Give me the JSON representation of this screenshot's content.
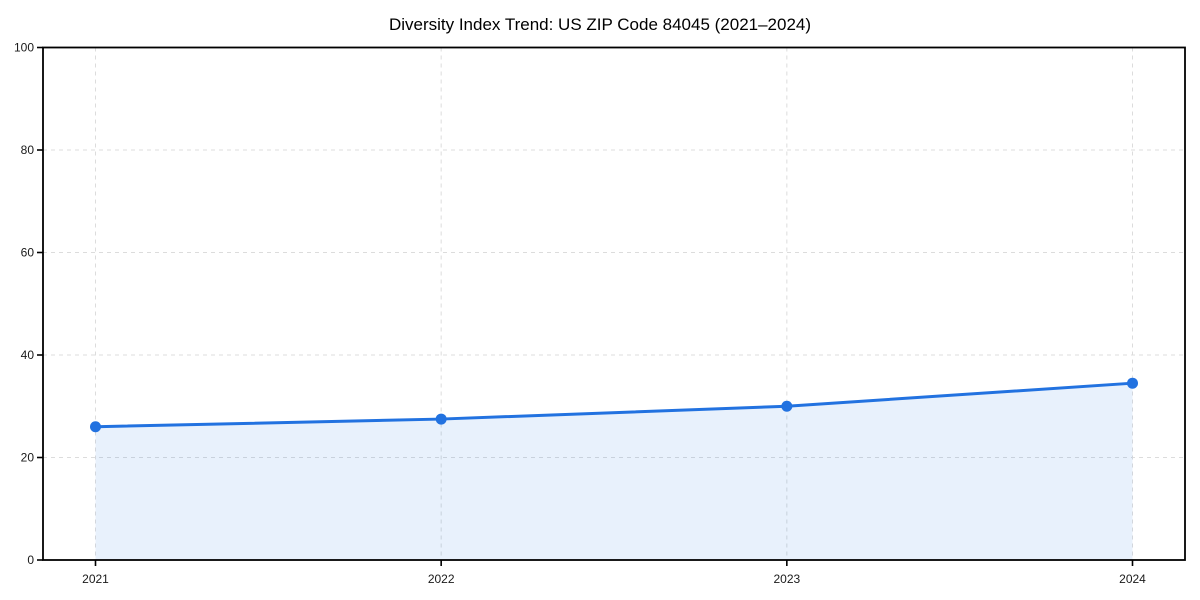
{
  "title": "Diversity Index Trend: US ZIP Code 84045 (2021–2024)",
  "chart_data": {
    "type": "area",
    "title": "Diversity Index Trend: US ZIP Code 84045 (2021–2024)",
    "x": [
      "2021",
      "2022",
      "2023",
      "2024"
    ],
    "values": [
      26,
      27.5,
      30,
      34.5
    ],
    "xlabel": "",
    "ylabel": "",
    "ylim": [
      0,
      100
    ],
    "yticks": [
      0,
      20,
      40,
      60,
      80,
      100
    ],
    "xticks": [
      "2021",
      "2022",
      "2023",
      "2024"
    ],
    "grid": true,
    "grid_style": "dashed",
    "legend": "none",
    "colors": {
      "line": "#2272e0",
      "marker": "#2272e0",
      "fill_opacity": 0.1,
      "grid": "#dcdcdc",
      "spine": "#000000",
      "tick_text": "#1a1a1a"
    }
  }
}
